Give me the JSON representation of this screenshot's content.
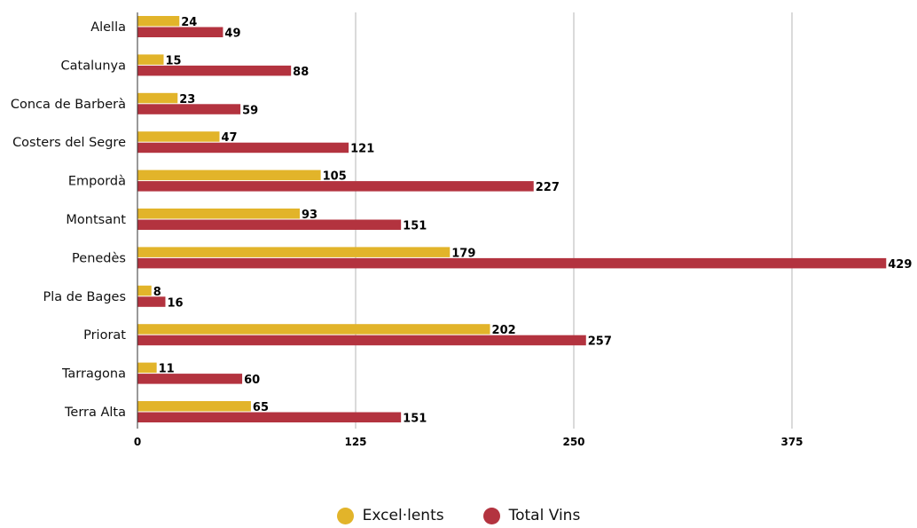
{
  "chart_data": {
    "type": "bar",
    "orientation": "horizontal",
    "categories": [
      "Alella",
      "Catalunya",
      "Conca de Barberà",
      "Costers del Segre",
      "Empordà",
      "Montsant",
      "Penedès",
      "Pla de Bages",
      "Priorat",
      "Tarragona",
      "Terra Alta"
    ],
    "series": [
      {
        "name": "Excel·lents",
        "color": "#E2B42A",
        "values": [
          24,
          15,
          23,
          47,
          105,
          93,
          179,
          8,
          202,
          11,
          65
        ]
      },
      {
        "name": "Total Vins",
        "color": "#B3333F",
        "values": [
          49,
          88,
          59,
          121,
          227,
          151,
          429,
          16,
          257,
          60,
          151
        ]
      }
    ],
    "xticks": [
      0,
      125,
      250,
      375
    ],
    "xlim": [
      0,
      429
    ],
    "grid": true,
    "legend_position": "bottom"
  }
}
